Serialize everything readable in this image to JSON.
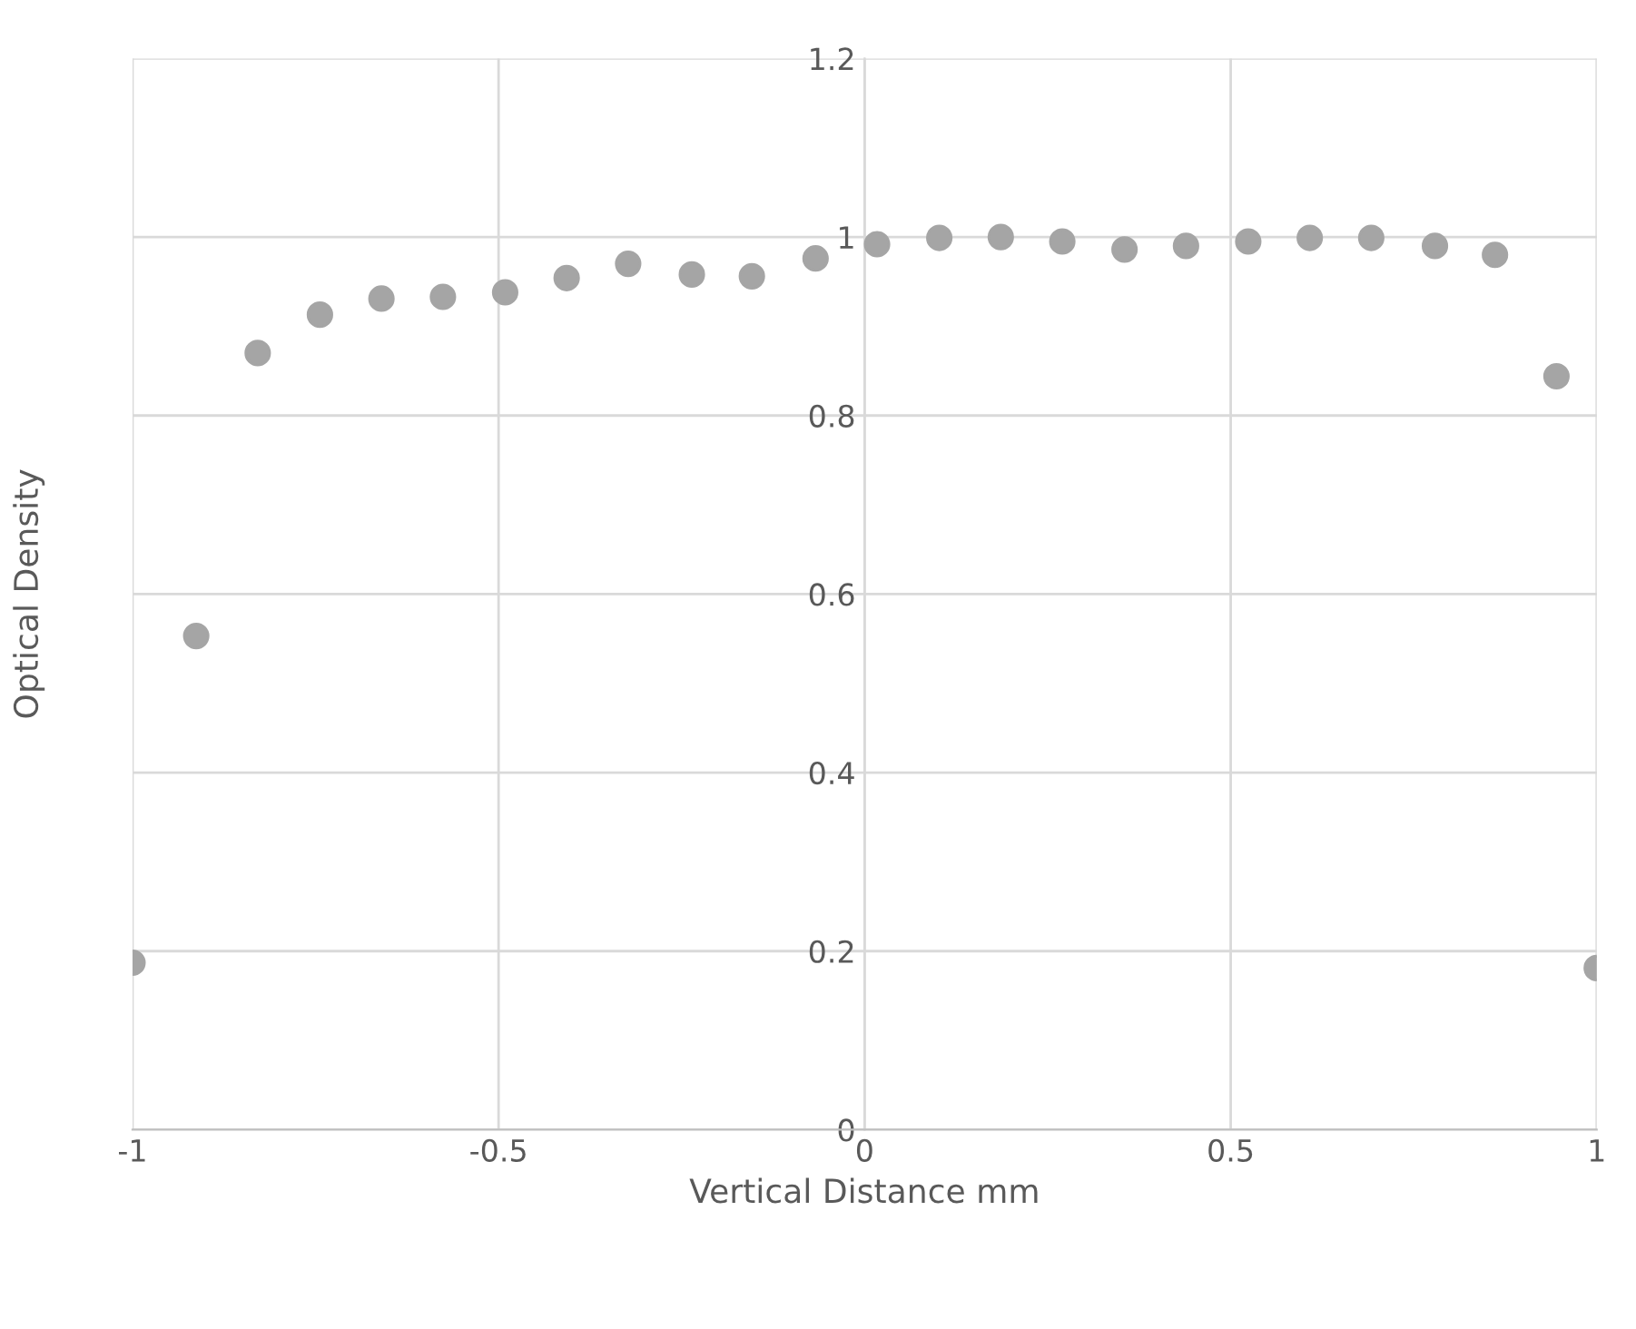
{
  "chart_data": {
    "type": "scatter",
    "xlabel": "Vertical Distance mm",
    "ylabel": "Optical Density",
    "x": [
      -1,
      -0.913,
      -0.829,
      -0.744,
      -0.66,
      -0.576,
      -0.491,
      -0.407,
      -0.323,
      -0.236,
      -0.154,
      -0.067,
      0.017,
      0.102,
      0.186,
      0.27,
      0.355,
      0.439,
      0.524,
      0.608,
      0.692,
      0.779,
      0.861,
      0.945,
      1
    ],
    "series": [
      {
        "color": "#a5a5a5",
        "values": [
          0.187,
          0.553,
          0.87,
          0.913,
          0.931,
          0.933,
          0.938,
          0.954,
          0.97,
          0.958,
          0.956,
          0.976,
          0.992,
          0.999,
          1.0,
          0.995,
          0.986,
          0.99,
          0.995,
          0.999,
          0.999,
          0.99,
          0.98,
          0.844,
          0.181
        ]
      }
    ],
    "xlim": [
      -1,
      1
    ],
    "ylim": [
      0,
      1.2
    ],
    "xticks": [
      -1,
      -0.5,
      0,
      0.5,
      1
    ],
    "yticks": [
      0,
      0.2,
      0.4,
      0.6,
      0.8,
      1,
      1.2
    ],
    "grid": true,
    "marker": "circle"
  }
}
